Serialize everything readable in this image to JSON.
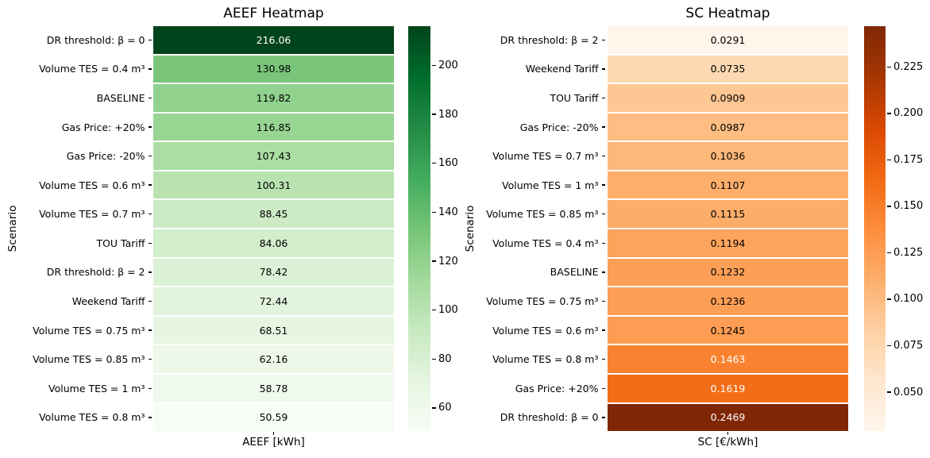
{
  "figure_background": "#ffffff",
  "chart_data": [
    {
      "type": "heatmap",
      "title": "AEEF Heatmap",
      "xlabel": "AEEF [kWh]",
      "ylabel": "Scenario",
      "colormap": "Greens",
      "orientation": "single-column-rows",
      "grid_line_color": "#ffffff",
      "vmin": 50.59,
      "vmax": 216.06,
      "categories": [
        "DR threshold: β = 0",
        "Volume TES = 0.4 m³",
        "BASELINE",
        "Gas Price: +20%",
        "Gas Price: -20%",
        "Volume TES = 0.6 m³",
        "Volume TES = 0.7 m³",
        "TOU Tariff",
        "DR threshold: β = 2",
        "Weekend Tariff",
        "Volume TES = 0.75 m³",
        "Volume TES = 0.85 m³",
        "Volume TES = 1 m³",
        "Volume TES = 0.8 m³"
      ],
      "values": [
        216.06,
        130.98,
        119.82,
        116.85,
        107.43,
        100.31,
        88.45,
        84.06,
        78.42,
        72.44,
        68.51,
        62.16,
        58.78,
        50.59
      ],
      "value_labels": [
        "216.06",
        "130.98",
        "119.82",
        "116.85",
        "107.43",
        "100.31",
        "88.45",
        "84.06",
        "78.42",
        "72.44",
        "68.51",
        "62.16",
        "58.78",
        "50.59"
      ],
      "colorbar_ticks": [
        200,
        180,
        160,
        140,
        120,
        100,
        80,
        60
      ],
      "colorbar_tick_labels": [
        "200",
        "180",
        "160",
        "140",
        "120",
        "100",
        "80",
        "60"
      ]
    },
    {
      "type": "heatmap",
      "title": "SC Heatmap",
      "xlabel": "SC [€/kWh]",
      "ylabel": "Scenario",
      "colormap": "Oranges",
      "orientation": "single-column-rows",
      "grid_line_color": "#ffffff",
      "vmin": 0.0291,
      "vmax": 0.2469,
      "categories": [
        "DR threshold: β = 2",
        "Weekend Tariff",
        "TOU Tariff",
        "Gas Price: -20%",
        "Volume TES = 0.7 m³",
        "Volume TES = 1 m³",
        "Volume TES = 0.85 m³",
        "Volume TES = 0.4 m³",
        "BASELINE",
        "Volume TES = 0.75 m³",
        "Volume TES = 0.6 m³",
        "Volume TES = 0.8 m³",
        "Gas Price: +20%",
        "DR threshold: β = 0"
      ],
      "values": [
        0.0291,
        0.0735,
        0.0909,
        0.0987,
        0.1036,
        0.1107,
        0.1115,
        0.1194,
        0.1232,
        0.1236,
        0.1245,
        0.1463,
        0.1619,
        0.2469
      ],
      "value_labels": [
        "0.0291",
        "0.0735",
        "0.0909",
        "0.0987",
        "0.1036",
        "0.1107",
        "0.1115",
        "0.1194",
        "0.1232",
        "0.1236",
        "0.1245",
        "0.1463",
        "0.1619",
        "0.2469"
      ],
      "colorbar_ticks": [
        0.225,
        0.2,
        0.175,
        0.15,
        0.125,
        0.1,
        0.075,
        0.05
      ],
      "colorbar_tick_labels": [
        "0.225",
        "0.200",
        "0.175",
        "0.150",
        "0.125",
        "0.100",
        "0.075",
        "0.050"
      ]
    }
  ]
}
